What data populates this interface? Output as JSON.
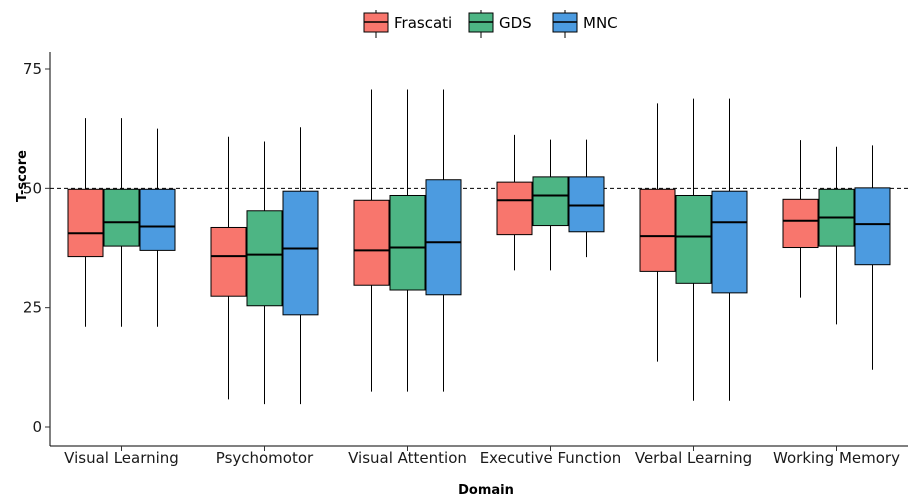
{
  "chart_data": {
    "type": "boxplot",
    "xlabel": "Domain",
    "ylabel": "T-score",
    "ylim": [
      0,
      78
    ],
    "yticks": [
      0,
      25,
      50,
      75
    ],
    "reference_line": 50,
    "legend_position": "top",
    "categories": [
      "Visual Learning",
      "Psychomotor",
      "Visual Attention",
      "Executive Function",
      "Verbal Learning",
      "Working Memory"
    ],
    "series": [
      {
        "name": "Frascati",
        "color": "#F8766D",
        "boxes": [
          {
            "low": 21,
            "q1": 35.7,
            "median": 40.6,
            "q3": 49.8,
            "high": 64.7
          },
          {
            "low": 5.8,
            "q1": 27.4,
            "median": 35.8,
            "q3": 41.8,
            "high": 60.8
          },
          {
            "low": 7.4,
            "q1": 29.7,
            "median": 37,
            "q3": 47.5,
            "high": 70.7
          },
          {
            "low": 32.8,
            "q1": 40.3,
            "median": 47.5,
            "q3": 51.3,
            "high": 61.2
          },
          {
            "low": 13.7,
            "q1": 32.6,
            "median": 40,
            "q3": 49.8,
            "high": 67.8
          },
          {
            "low": 27.1,
            "q1": 37.6,
            "median": 43.2,
            "q3": 47.7,
            "high": 60.1
          }
        ]
      },
      {
        "name": "GDS",
        "color": "#4DB584",
        "boxes": [
          {
            "low": 21,
            "q1": 37.9,
            "median": 42.9,
            "q3": 49.8,
            "high": 64.7
          },
          {
            "low": 4.8,
            "q1": 25.4,
            "median": 36.1,
            "q3": 45.3,
            "high": 59.8
          },
          {
            "low": 7.4,
            "q1": 28.7,
            "median": 37.6,
            "q3": 48.5,
            "high": 70.7
          },
          {
            "low": 32.8,
            "q1": 42.2,
            "median": 48.5,
            "q3": 52.4,
            "high": 60.2
          },
          {
            "low": 5.5,
            "q1": 30.1,
            "median": 39.9,
            "q3": 48.5,
            "high": 68.8
          },
          {
            "low": 21.5,
            "q1": 37.9,
            "median": 43.9,
            "q3": 49.8,
            "high": 58.7
          }
        ]
      },
      {
        "name": "MNC",
        "color": "#4C9BE0",
        "boxes": [
          {
            "low": 21,
            "q1": 37,
            "median": 42,
            "q3": 49.8,
            "high": 62.5
          },
          {
            "low": 4.8,
            "q1": 23.5,
            "median": 37.4,
            "q3": 49.4,
            "high": 62.8
          },
          {
            "low": 7.4,
            "q1": 27.7,
            "median": 38.7,
            "q3": 51.8,
            "high": 70.7
          },
          {
            "low": 35.6,
            "q1": 40.9,
            "median": 46.4,
            "q3": 52.4,
            "high": 60.2
          },
          {
            "low": 5.5,
            "q1": 28.1,
            "median": 42.9,
            "q3": 49.4,
            "high": 68.8
          },
          {
            "low": 12,
            "q1": 34,
            "median": 42.5,
            "q3": 50.1,
            "high": 59
          }
        ]
      }
    ]
  }
}
